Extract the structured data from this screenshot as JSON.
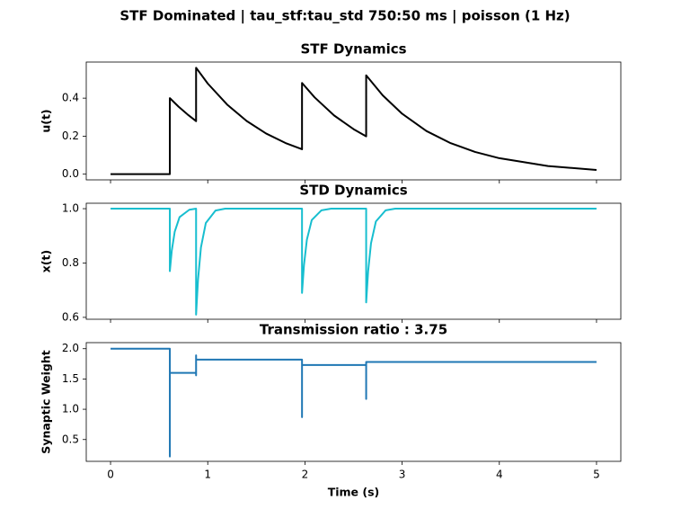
{
  "title": "STF Dominated | tau_stf:tau_std 750:50 ms | poisson (1 Hz)",
  "chart_data": [
    {
      "type": "line",
      "title": "STF Dynamics",
      "ylabel": "u(t)",
      "color": "#000000",
      "xlim": [
        -0.25,
        5.25
      ],
      "ylim": [
        -0.03,
        0.59
      ],
      "yticks": [
        {
          "value": 0,
          "label": "0.0"
        },
        0.2,
        0.4
      ],
      "x": [
        0,
        0.61,
        0.61,
        0.7,
        0.8,
        0.88,
        0.88,
        1.0,
        1.2,
        1.4,
        1.6,
        1.8,
        1.97,
        1.97,
        2.1,
        2.3,
        2.5,
        2.63,
        2.63,
        2.8,
        3.0,
        3.25,
        3.5,
        3.75,
        4.0,
        4.5,
        5.0
      ],
      "values": [
        0,
        0,
        0.4,
        0.355,
        0.311,
        0.279,
        0.56,
        0.477,
        0.366,
        0.28,
        0.214,
        0.164,
        0.131,
        0.48,
        0.404,
        0.309,
        0.237,
        0.199,
        0.52,
        0.415,
        0.318,
        0.227,
        0.163,
        0.117,
        0.084,
        0.043,
        0.022
      ]
    },
    {
      "type": "line",
      "title": "STD Dynamics",
      "ylabel": "x(t)",
      "color": "#17becf",
      "xlim": [
        -0.25,
        5.25
      ],
      "ylim": [
        0.593,
        1.02
      ],
      "yticks": [
        0.6,
        0.8,
        {
          "value": 1,
          "label": "1.0"
        }
      ],
      "x": [
        0,
        0.61,
        0.61,
        0.63,
        0.66,
        0.71,
        0.81,
        0.88,
        0.88,
        0.9,
        0.93,
        0.98,
        1.08,
        1.18,
        1.97,
        1.97,
        1.99,
        2.02,
        2.07,
        2.17,
        2.27,
        2.63,
        2.63,
        2.65,
        2.68,
        2.73,
        2.83,
        2.93,
        5.0
      ],
      "values": [
        1,
        1,
        0.77,
        0.846,
        0.915,
        0.969,
        0.996,
        1,
        0.61,
        0.739,
        0.857,
        0.947,
        0.993,
        1,
        1,
        0.69,
        0.792,
        0.886,
        0.958,
        0.994,
        1,
        1,
        0.655,
        0.769,
        0.873,
        0.953,
        0.994,
        1,
        1
      ]
    },
    {
      "type": "line",
      "title": "Transmission ratio : 3.75",
      "ylabel": "Synaptic Weight",
      "xlabel": "Time (s)",
      "color": "#1f77b4",
      "xlim": [
        -0.25,
        5.25
      ],
      "ylim": [
        0.14,
        2.1
      ],
      "xticks": [
        0,
        1,
        2,
        3,
        4,
        5
      ],
      "yticks": [
        0.5,
        {
          "value": 1,
          "label": "1.0"
        },
        1.5,
        {
          "value": 2,
          "label": "2.0"
        }
      ],
      "x": [
        0,
        0.61,
        0.61,
        0.61,
        0.88,
        0.88,
        0.88,
        0.88,
        1.97,
        1.97,
        1.97,
        2.63,
        2.63,
        2.63,
        5.0
      ],
      "values": [
        2.0,
        2.0,
        0.22,
        1.6,
        1.6,
        1.56,
        1.89,
        1.82,
        1.82,
        0.87,
        1.73,
        1.73,
        1.17,
        1.78,
        1.78
      ]
    }
  ]
}
